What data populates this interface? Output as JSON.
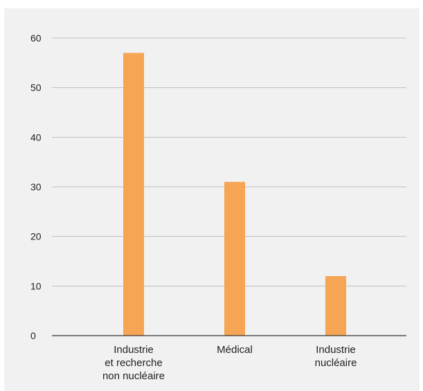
{
  "chart_data": {
    "type": "bar",
    "categories": [
      [
        "Industrie",
        "et recherche",
        "non nucléaire"
      ],
      [
        "Médical"
      ],
      [
        "Industrie",
        "nucléaire"
      ]
    ],
    "values": [
      57,
      31,
      12
    ],
    "ylim": [
      0,
      60
    ],
    "yticks": [
      "0",
      "10",
      "20",
      "30",
      "40",
      "50",
      "60"
    ],
    "grid": true,
    "bar_color": "#f5a553",
    "grid_color": "#bdbdbd",
    "axis_color": "#333333"
  }
}
